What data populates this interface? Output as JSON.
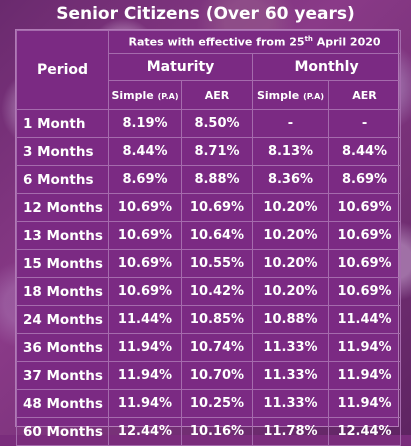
{
  "title": "Senior Citizens (Over 60 years)",
  "header": {
    "period": "Period",
    "rates_note_prefix": "Rates with effective from 25",
    "rates_note_sup": "th",
    "rates_note_suffix": " April 2020",
    "maturity": "Maturity",
    "monthly": "Monthly",
    "simple": "Simple",
    "pa": "(P.A)",
    "aer": "AER"
  },
  "rows": [
    {
      "period": "1 Month",
      "mat_simple": "8.19%",
      "mat_aer": "8.50%",
      "mon_simple": "-",
      "mon_aer": "-"
    },
    {
      "period": "3 Months",
      "mat_simple": "8.44%",
      "mat_aer": "8.71%",
      "mon_simple": "8.13%",
      "mon_aer": "8.44%"
    },
    {
      "period": "6 Months",
      "mat_simple": "8.69%",
      "mat_aer": "8.88%",
      "mon_simple": "8.36%",
      "mon_aer": "8.69%"
    },
    {
      "period": "12 Months",
      "mat_simple": "10.69%",
      "mat_aer": "10.69%",
      "mon_simple": "10.20%",
      "mon_aer": "10.69%"
    },
    {
      "period": "13 Months",
      "mat_simple": "10.69%",
      "mat_aer": "10.64%",
      "mon_simple": "10.20%",
      "mon_aer": "10.69%"
    },
    {
      "period": "15 Months",
      "mat_simple": "10.69%",
      "mat_aer": "10.55%",
      "mon_simple": "10.20%",
      "mon_aer": "10.69%"
    },
    {
      "period": "18 Months",
      "mat_simple": "10.69%",
      "mat_aer": "10.42%",
      "mon_simple": "10.20%",
      "mon_aer": "10.69%"
    },
    {
      "period": "24 Months",
      "mat_simple": "11.44%",
      "mat_aer": "10.85%",
      "mon_simple": "10.88%",
      "mon_aer": "11.44%"
    },
    {
      "period": "36 Months",
      "mat_simple": "11.94%",
      "mat_aer": "10.74%",
      "mon_simple": "11.33%",
      "mon_aer": "11.94%"
    },
    {
      "period": "37 Months",
      "mat_simple": "11.94%",
      "mat_aer": "10.70%",
      "mon_simple": "11.33%",
      "mon_aer": "11.94%"
    },
    {
      "period": "48 Months",
      "mat_simple": "11.94%",
      "mat_aer": "10.25%",
      "mon_simple": "11.33%",
      "mon_aer": "11.94%"
    },
    {
      "period": "60 Months",
      "mat_simple": "12.44%",
      "mat_aer": "10.16%",
      "mon_simple": "11.78%",
      "mon_aer": "12.44%"
    }
  ]
}
